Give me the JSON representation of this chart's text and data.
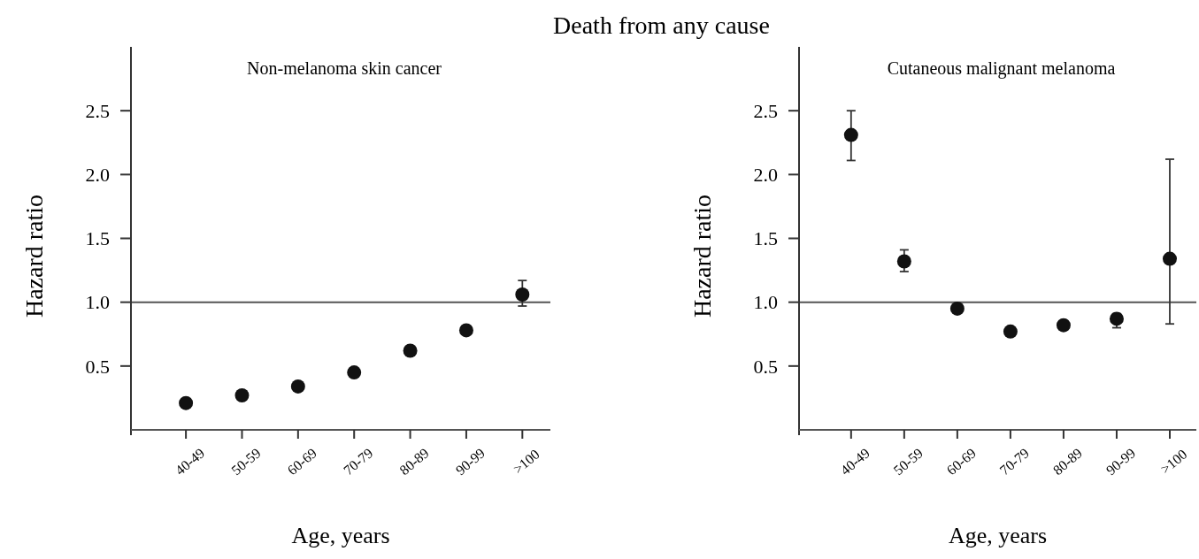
{
  "chart_data": [
    {
      "type": "scatter",
      "title": "Death from any cause",
      "subtitle": "Non-melanoma skin cancer",
      "xlabel": "Age, years",
      "ylabel": "Hazard ratio",
      "categories": [
        "40-49",
        "50-59",
        "60-69",
        "70-79",
        "80-89",
        "90-99",
        ">100"
      ],
      "series": [
        {
          "color": "#111111",
          "values": [
            0.21,
            0.27,
            0.34,
            0.45,
            0.62,
            0.78,
            1.06
          ],
          "errors": [
            null,
            null,
            null,
            null,
            null,
            null,
            [
              0.97,
              1.17
            ]
          ]
        }
      ],
      "ylim": [
        0,
        3
      ],
      "yticks": [
        {
          "value": 0.5,
          "label": "0.5"
        },
        {
          "value": 1,
          "label": "1.0"
        },
        {
          "value": 1.5,
          "label": "1.5"
        },
        {
          "value": 2,
          "label": "2.0"
        },
        {
          "value": 2.5,
          "label": "2.5"
        }
      ],
      "ref_lines": [
        {
          "axis": "y",
          "value": 1,
          "color": "#555555"
        }
      ],
      "marker": "circle",
      "grid": false
    },
    {
      "type": "scatter",
      "subtitle": "Cutaneous malignant melanoma",
      "xlabel": "Age, years",
      "ylabel": "Hazard ratio",
      "categories": [
        "40-49",
        "50-59",
        "60-69",
        "70-79",
        "80-89",
        "90-99",
        ">100"
      ],
      "series": [
        {
          "color": "#111111",
          "values": [
            2.31,
            1.32,
            0.95,
            0.77,
            0.82,
            0.87,
            1.34
          ],
          "errors": [
            [
              2.11,
              2.5
            ],
            [
              1.24,
              1.41
            ],
            null,
            null,
            null,
            [
              0.8,
              0.91
            ],
            [
              0.83,
              2.12
            ]
          ]
        }
      ],
      "ylim": [
        0,
        3
      ],
      "yticks": [
        {
          "value": 0.5,
          "label": "0.5"
        },
        {
          "value": 1,
          "label": "1.0"
        },
        {
          "value": 1.5,
          "label": "1.5"
        },
        {
          "value": 2,
          "label": "2.0"
        },
        {
          "value": 2.5,
          "label": "2.5"
        }
      ],
      "ref_lines": [
        {
          "axis": "y",
          "value": 1,
          "color": "#555555"
        }
      ],
      "marker": "circle",
      "grid": false
    }
  ]
}
